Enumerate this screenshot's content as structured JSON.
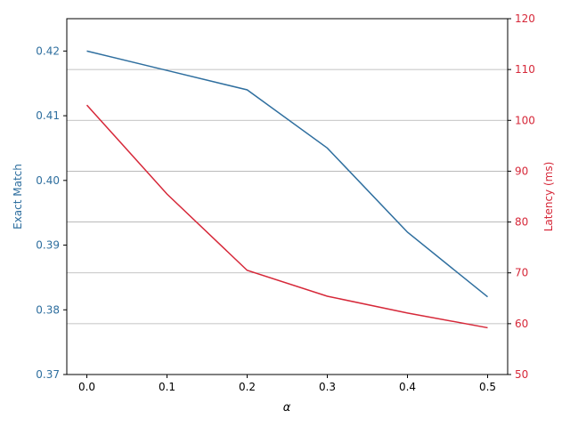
{
  "chart_data": {
    "type": "line",
    "title": "",
    "xlabel": "α",
    "ylabel_left": "Exact Match",
    "ylabel_right": "Latency (ms)",
    "x": [
      0.0,
      0.1,
      0.2,
      0.3,
      0.4,
      0.5
    ],
    "xticks": [
      "0.0",
      "0.1",
      "0.2",
      "0.3",
      "0.4",
      "0.5"
    ],
    "xlim": [
      -0.025,
      0.525
    ],
    "ylim_left": [
      0.37,
      0.425
    ],
    "yticks_left": [
      "0.37",
      "0.38",
      "0.39",
      "0.40",
      "0.41",
      "0.42"
    ],
    "ylim_right": [
      50,
      120
    ],
    "yticks_right": [
      "50",
      "60",
      "70",
      "80",
      "90",
      "100",
      "110",
      "120"
    ],
    "grid": "horizontal, right axis",
    "series": [
      {
        "name": "Exact Match",
        "axis": "left",
        "color": "#2f6f9f",
        "values": [
          0.42,
          0.417,
          0.414,
          0.405,
          0.392,
          0.382
        ]
      },
      {
        "name": "Latency (ms)",
        "axis": "right",
        "color": "#d62839",
        "values": [
          103.0,
          85.5,
          70.5,
          65.4,
          62.1,
          59.2
        ]
      }
    ],
    "colors": {
      "left_axis": "#2f6f9f",
      "right_axis": "#d62839"
    }
  }
}
